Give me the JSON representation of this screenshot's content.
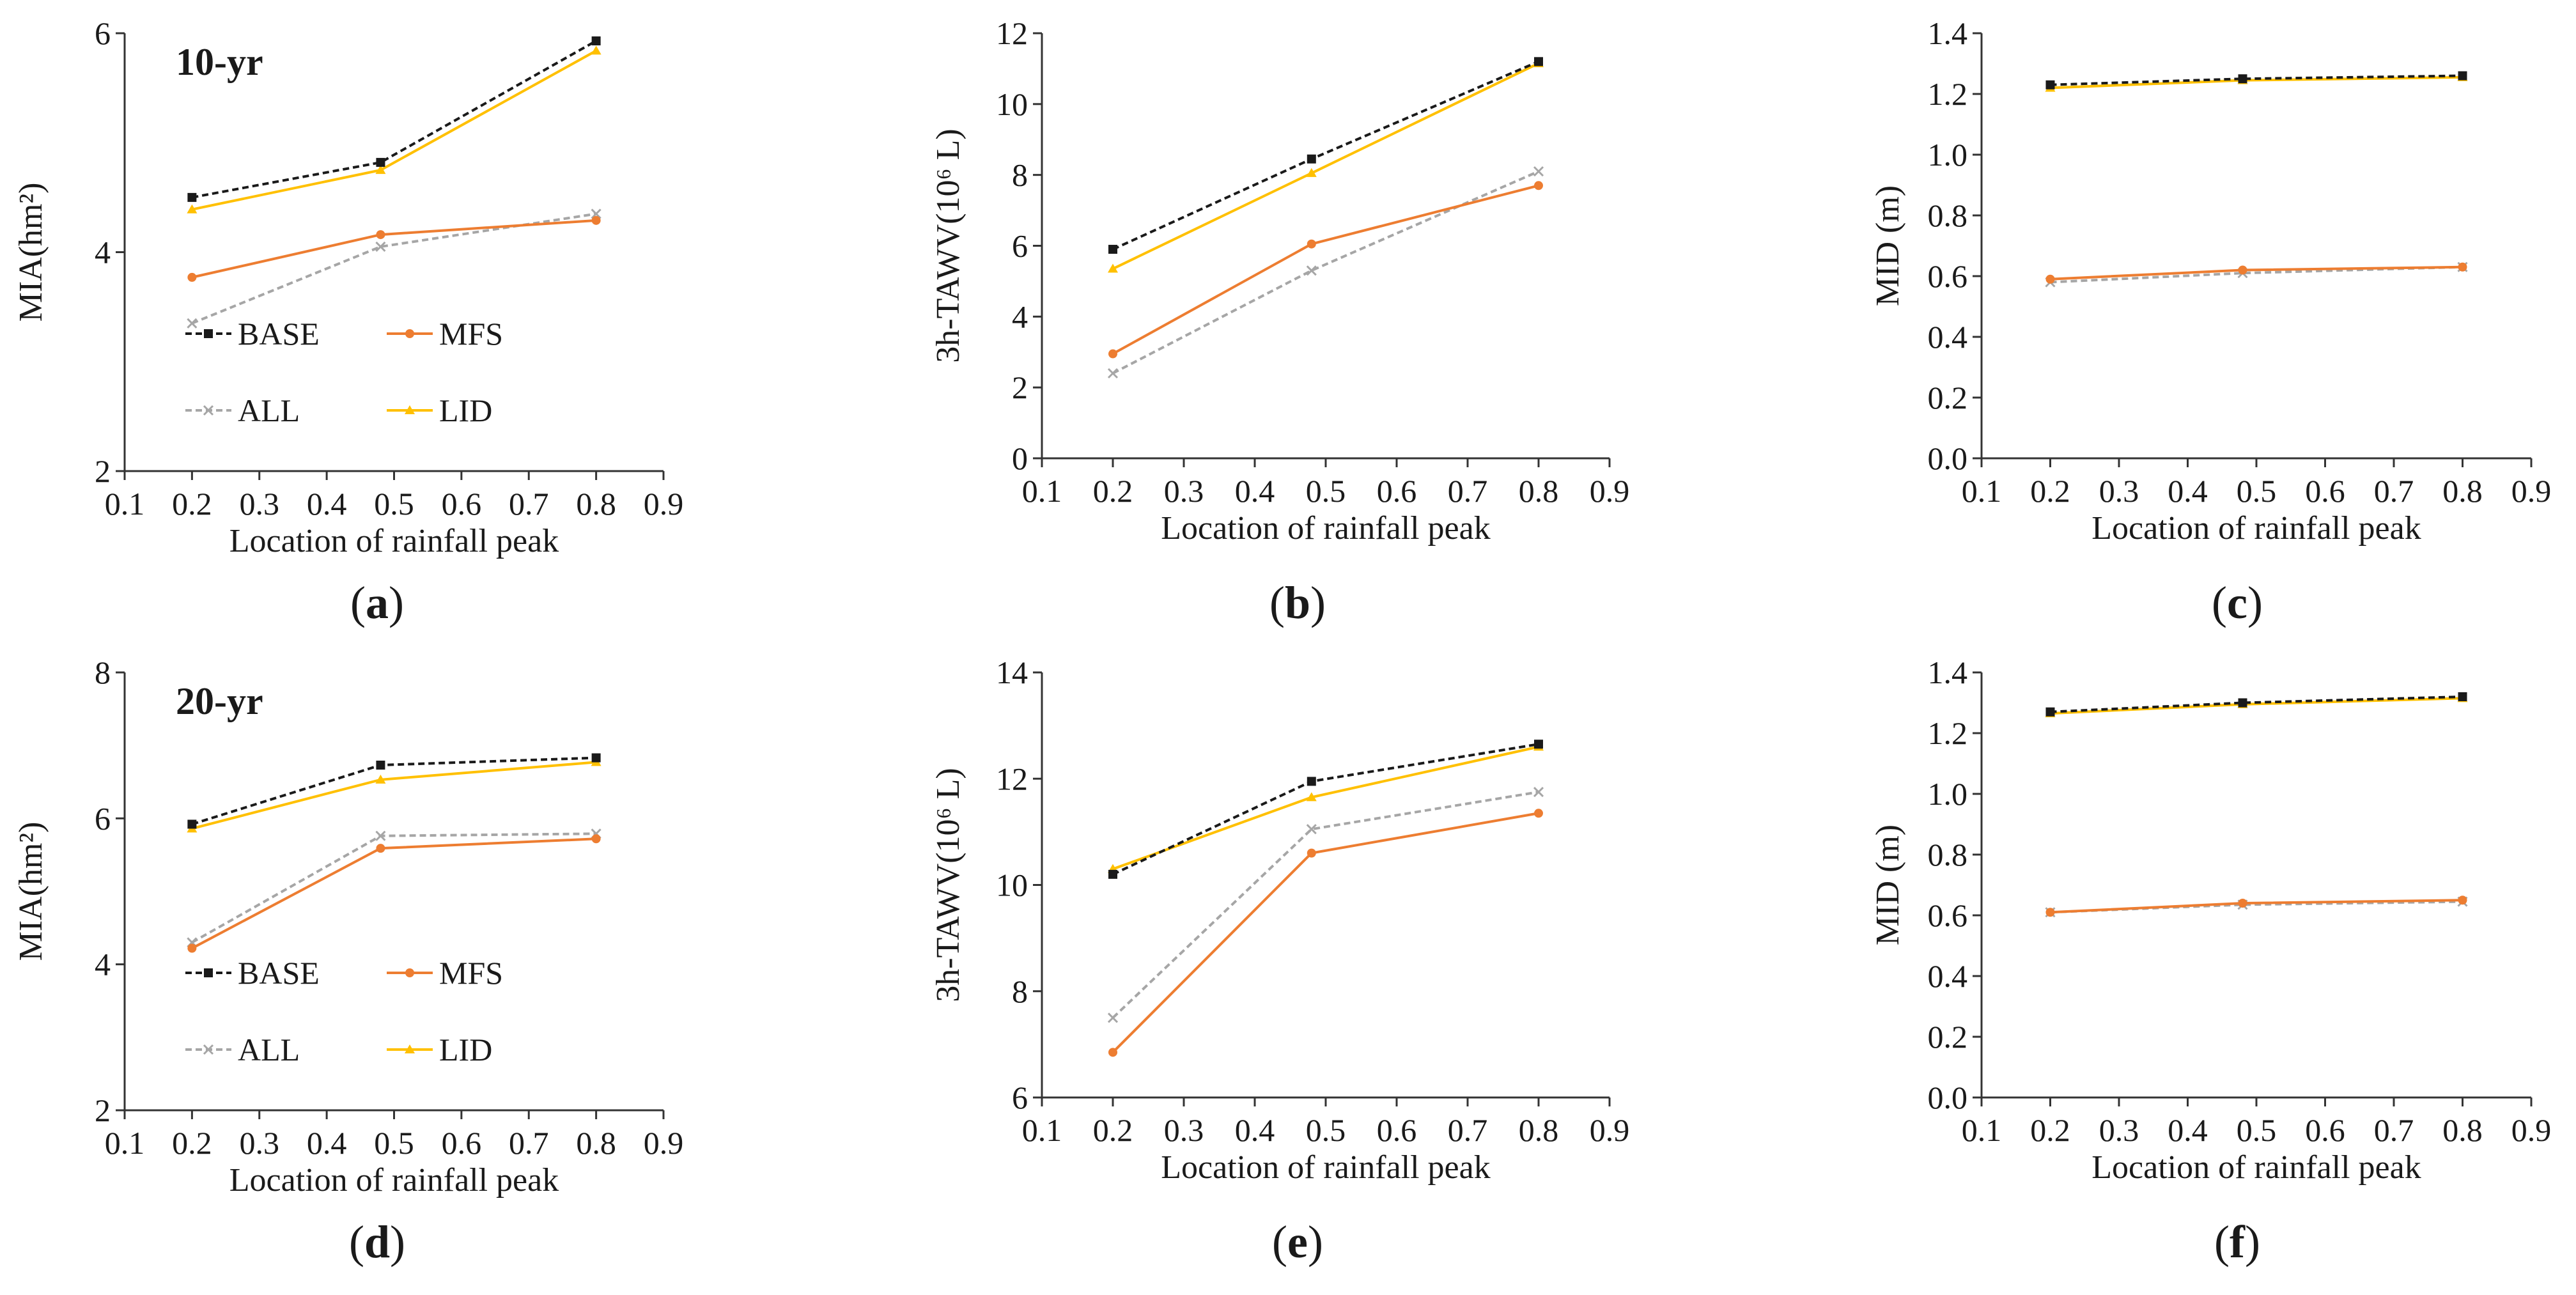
{
  "colors": {
    "BASE": "#1a1a1a",
    "MFS": "#ed7d31",
    "ALL": "#a6a6a6",
    "LID": "#ffc000"
  },
  "chart_data": [
    {
      "type": "line",
      "panel_label": "a",
      "return_period": "10-yr",
      "title": "",
      "xlabel": "Location of rainfall peak",
      "ylabel": "MIA(hm²)",
      "xlim": [
        0.1,
        0.9
      ],
      "ylim": [
        2,
        6
      ],
      "xticks": [
        "0.1",
        "0.2",
        "0.3",
        "0.4",
        "0.5",
        "0.6",
        "0.7",
        "0.8",
        "0.9"
      ],
      "yticks": [
        "2",
        "4",
        "6"
      ],
      "x": [
        0.2,
        0.48,
        0.8
      ],
      "legend": [
        "BASE",
        "MFS",
        "ALL",
        "LID"
      ],
      "series": [
        {
          "name": "BASE",
          "values": [
            4.5,
            4.82,
            5.93
          ]
        },
        {
          "name": "MFS",
          "values": [
            3.77,
            4.16,
            4.29
          ]
        },
        {
          "name": "ALL",
          "values": [
            3.35,
            4.05,
            4.35
          ]
        },
        {
          "name": "LID",
          "values": [
            4.39,
            4.75,
            5.84
          ]
        }
      ]
    },
    {
      "type": "line",
      "panel_label": "b",
      "return_period": "",
      "title": "",
      "xlabel": "Location of rainfall peak",
      "ylabel": "3h-TAWV(10⁶ L)",
      "xlim": [
        0.1,
        0.9
      ],
      "ylim": [
        0,
        12
      ],
      "xticks": [
        "0.1",
        "0.2",
        "0.3",
        "0.4",
        "0.5",
        "0.6",
        "0.7",
        "0.8",
        "0.9"
      ],
      "yticks": [
        "0",
        "2",
        "4",
        "6",
        "8",
        "10",
        "12"
      ],
      "x": [
        0.2,
        0.48,
        0.8
      ],
      "legend": [],
      "series": [
        {
          "name": "BASE",
          "values": [
            5.9,
            8.45,
            11.2
          ]
        },
        {
          "name": "MFS",
          "values": [
            2.95,
            6.05,
            7.7
          ]
        },
        {
          "name": "ALL",
          "values": [
            2.4,
            5.3,
            8.1
          ]
        },
        {
          "name": "LID",
          "values": [
            5.35,
            8.05,
            11.15
          ]
        }
      ]
    },
    {
      "type": "line",
      "panel_label": "c",
      "return_period": "",
      "title": "",
      "xlabel": "Location of rainfall peak",
      "ylabel": "MID (m)",
      "xlim": [
        0.1,
        0.9
      ],
      "ylim": [
        0,
        1.4
      ],
      "xticks": [
        "0.1",
        "0.2",
        "0.3",
        "0.4",
        "0.5",
        "0.6",
        "0.7",
        "0.8",
        "0.9"
      ],
      "yticks": [
        "0.0",
        "0.2",
        "0.4",
        "0.6",
        "0.8",
        "1.0",
        "1.2",
        "1.4"
      ],
      "x": [
        0.2,
        0.48,
        0.8
      ],
      "legend": [],
      "series": [
        {
          "name": "BASE",
          "values": [
            1.23,
            1.25,
            1.26
          ]
        },
        {
          "name": "MFS",
          "values": [
            0.59,
            0.62,
            0.63
          ]
        },
        {
          "name": "ALL",
          "values": [
            0.58,
            0.61,
            0.63
          ]
        },
        {
          "name": "LID",
          "values": [
            1.22,
            1.245,
            1.255
          ]
        }
      ]
    },
    {
      "type": "line",
      "panel_label": "d",
      "return_period": "20-yr",
      "title": "",
      "xlabel": "Location of rainfall peak",
      "ylabel": "MIA(hm²)",
      "xlim": [
        0.1,
        0.9
      ],
      "ylim": [
        2,
        8
      ],
      "xticks": [
        "0.1",
        "0.2",
        "0.3",
        "0.4",
        "0.5",
        "0.6",
        "0.7",
        "0.8",
        "0.9"
      ],
      "yticks": [
        "2",
        "4",
        "6",
        "8"
      ],
      "x": [
        0.2,
        0.48,
        0.8
      ],
      "legend": [
        "BASE",
        "MFS",
        "ALL",
        "LID"
      ],
      "series": [
        {
          "name": "BASE",
          "values": [
            5.92,
            6.73,
            6.83
          ]
        },
        {
          "name": "MFS",
          "values": [
            4.22,
            5.59,
            5.72
          ]
        },
        {
          "name": "ALL",
          "values": [
            4.3,
            5.76,
            5.79
          ]
        },
        {
          "name": "LID",
          "values": [
            5.86,
            6.53,
            6.77
          ]
        }
      ]
    },
    {
      "type": "line",
      "panel_label": "e",
      "return_period": "",
      "title": "",
      "xlabel": "Location of rainfall peak",
      "ylabel": "3h-TAWV(10⁶ L)",
      "xlim": [
        0.1,
        0.9
      ],
      "ylim": [
        6,
        14
      ],
      "xticks": [
        "0.1",
        "0.2",
        "0.3",
        "0.4",
        "0.5",
        "0.6",
        "0.7",
        "0.8",
        "0.9"
      ],
      "yticks": [
        "6",
        "8",
        "10",
        "12",
        "14"
      ],
      "x": [
        0.2,
        0.48,
        0.8
      ],
      "legend": [],
      "series": [
        {
          "name": "BASE",
          "values": [
            10.2,
            11.95,
            12.65
          ]
        },
        {
          "name": "MFS",
          "values": [
            6.85,
            10.6,
            11.35
          ]
        },
        {
          "name": "ALL",
          "values": [
            7.5,
            11.05,
            11.75
          ]
        },
        {
          "name": "LID",
          "values": [
            10.3,
            11.65,
            12.6
          ]
        }
      ]
    },
    {
      "type": "line",
      "panel_label": "f",
      "return_period": "",
      "title": "",
      "xlabel": "Location of rainfall peak",
      "ylabel": "MID (m)",
      "xlim": [
        0.1,
        0.9
      ],
      "ylim": [
        0,
        1.4
      ],
      "xticks": [
        "0.1",
        "0.2",
        "0.3",
        "0.4",
        "0.5",
        "0.6",
        "0.7",
        "0.8",
        "0.9"
      ],
      "yticks": [
        "0.0",
        "0.2",
        "0.4",
        "0.6",
        "0.8",
        "1.0",
        "1.2",
        "1.4"
      ],
      "x": [
        0.2,
        0.48,
        0.8
      ],
      "legend": [],
      "series": [
        {
          "name": "BASE",
          "values": [
            1.27,
            1.3,
            1.32
          ]
        },
        {
          "name": "MFS",
          "values": [
            0.61,
            0.64,
            0.65
          ]
        },
        {
          "name": "ALL",
          "values": [
            0.61,
            0.635,
            0.645
          ]
        },
        {
          "name": "LID",
          "values": [
            1.265,
            1.295,
            1.315
          ]
        }
      ]
    }
  ]
}
